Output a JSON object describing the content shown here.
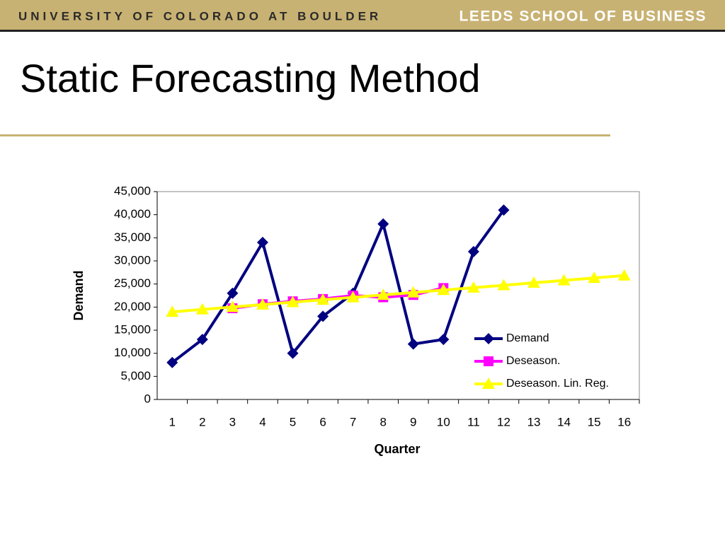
{
  "header": {
    "university": "UNIVERSITY OF COLORADO AT BOULDER",
    "school": "LEEDS SCHOOL OF BUSINESS"
  },
  "chart_data": {
    "type": "line",
    "title": "Static Forecasting Method",
    "x_label": "Quarter",
    "y_label": "Demand",
    "categories": [
      "1",
      "2",
      "3",
      "4",
      "5",
      "6",
      "7",
      "8",
      "9",
      "10",
      "11",
      "12",
      "13",
      "14",
      "15",
      "16"
    ],
    "series": [
      {
        "name": "Demand",
        "color": "#000080",
        "marker": "diamond",
        "values": [
          8000,
          13000,
          23000,
          34000,
          10000,
          18000,
          23000,
          38000,
          12000,
          13000,
          32000,
          41000,
          null,
          null,
          null,
          null
        ]
      },
      {
        "name": "Deseason.",
        "color": "#ff00ff",
        "marker": "square",
        "values": [
          null,
          null,
          19750,
          20625,
          21250,
          21750,
          22500,
          22125,
          22625,
          24125,
          null,
          null,
          null,
          null,
          null,
          null
        ]
      },
      {
        "name": "Deseason. Lin. Reg.",
        "color": "#ffff00",
        "marker": "triangle",
        "values": [
          18963,
          19487,
          20011,
          20535,
          21059,
          21583,
          22107,
          22631,
          23155,
          23679,
          24203,
          24727,
          25251,
          25775,
          26299,
          26823
        ]
      }
    ],
    "ylim": [
      0,
      45000
    ],
    "yticks": [
      0,
      {
        "value": 5000,
        "label": "5,000"
      },
      {
        "value": 10000,
        "label": "10,000"
      },
      {
        "value": 15000,
        "label": "15,000"
      },
      {
        "value": 20000,
        "label": "20,000"
      },
      {
        "value": 25000,
        "label": "25,000"
      },
      {
        "value": 30000,
        "label": "30,000"
      },
      {
        "value": 35000,
        "label": "35,000"
      },
      {
        "value": 40000,
        "label": "40,000"
      },
      {
        "value": 45000,
        "label": "45,000"
      }
    ],
    "legend": "right",
    "grid": false
  }
}
